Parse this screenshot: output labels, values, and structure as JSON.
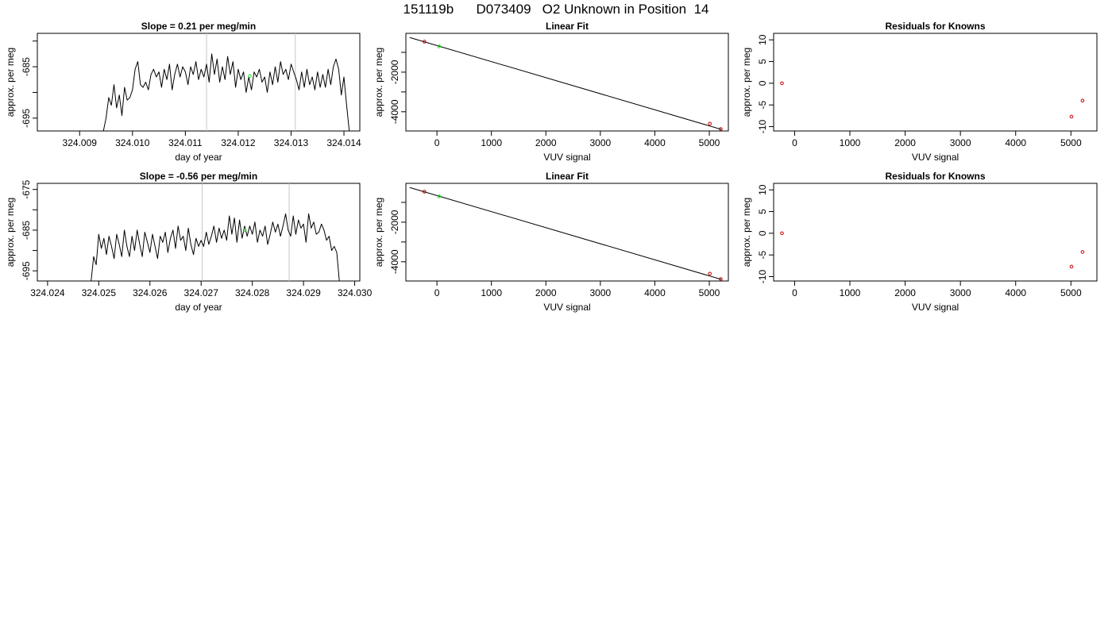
{
  "figure_title": "151119b      D073409   O2 Unknown in Position  14",
  "chart_data": [
    {
      "type": "line",
      "title": "Slope =  0.21  per meg/min",
      "xlabel": "day of year",
      "ylabel": "approx. per meg",
      "xlim": [
        324.0082,
        324.0143
      ],
      "ylim": [
        -697.5,
        -678.5
      ],
      "xticks": [
        324.009,
        324.01,
        324.011,
        324.012,
        324.013,
        324.014
      ],
      "xtick_labels": [
        "324.009",
        "324.010",
        "324.011",
        "324.012",
        "324.013",
        "324.014"
      ],
      "yticks": [
        -685,
        -695
      ],
      "ytick_labels": [
        "-685",
        "-695"
      ],
      "yticks_minor": [
        -680,
        -690
      ],
      "vlines": [
        324.0114,
        324.01308
      ],
      "series": [
        {
          "color": "#000000",
          "x": [
            324.00945,
            324.0095,
            324.00955,
            324.0096,
            324.00965,
            324.0097,
            324.00975,
            324.0098,
            324.00985,
            324.0099,
            324.00995,
            324.01,
            324.01005,
            324.0101,
            324.01015,
            324.0102,
            324.01025,
            324.0103,
            324.01035,
            324.0104,
            324.01045,
            324.0105,
            324.01055,
            324.0106,
            324.01065,
            324.0107,
            324.01075,
            324.0108,
            324.01085,
            324.0109,
            324.01095,
            324.011,
            324.01105,
            324.0111,
            324.01115,
            324.0112,
            324.01125,
            324.0113,
            324.01135,
            324.0114,
            324.01145,
            324.0115,
            324.01155,
            324.0116,
            324.01165,
            324.0117,
            324.01175,
            324.0118,
            324.01185,
            324.0119,
            324.01195,
            324.012,
            324.01205,
            324.0121,
            324.01215,
            324.0122,
            324.01225,
            324.0123,
            324.01235,
            324.0124,
            324.01245,
            324.0125,
            324.01255,
            324.0126,
            324.01265,
            324.0127,
            324.01275,
            324.0128,
            324.01285,
            324.0129,
            324.01295,
            324.013,
            324.01305,
            324.0131,
            324.01315,
            324.0132,
            324.01325,
            324.0133,
            324.01335,
            324.0134,
            324.01345,
            324.0135,
            324.01355,
            324.0136,
            324.01365,
            324.0137,
            324.01375,
            324.0138,
            324.01385,
            324.0139,
            324.01395,
            324.014,
            324.01405,
            324.0141
          ],
          "y": [
            -697.5,
            -695.0,
            -691.0,
            -692.5,
            -688.5,
            -693.0,
            -690.5,
            -694.5,
            -689.0,
            -691.5,
            -691.0,
            -689.5,
            -685.5,
            -684.0,
            -688.5,
            -689.0,
            -688.0,
            -689.5,
            -686.5,
            -685.5,
            -687.0,
            -686.0,
            -689.0,
            -685.5,
            -687.5,
            -684.5,
            -689.5,
            -686.5,
            -684.5,
            -687.0,
            -685.0,
            -686.0,
            -688.5,
            -685.0,
            -686.5,
            -684.0,
            -687.5,
            -685.5,
            -687.0,
            -684.5,
            -688.0,
            -682.5,
            -686.5,
            -683.5,
            -688.0,
            -685.0,
            -687.5,
            -683.0,
            -686.5,
            -684.0,
            -689.0,
            -685.5,
            -687.5,
            -686.0,
            -690.0,
            -687.0,
            -689.5,
            -686.0,
            -687.0,
            -685.5,
            -688.0,
            -687.0,
            -690.0,
            -686.0,
            -688.5,
            -685.0,
            -688.0,
            -684.0,
            -686.5,
            -685.5,
            -687.5,
            -684.5,
            -686.0,
            -687.5,
            -689.5,
            -686.0,
            -689.0,
            -685.5,
            -688.5,
            -687.0,
            -689.5,
            -686.0,
            -689.0,
            -686.5,
            -689.0,
            -685.5,
            -688.5,
            -685.0,
            -683.5,
            -685.5,
            -690.5,
            -687.0,
            -692.5,
            -697.5
          ]
        }
      ],
      "points": [
        {
          "x": 324.01222,
          "y": -686.8,
          "color": "#22dd22"
        }
      ]
    },
    {
      "type": "scatter",
      "title": "Linear Fit",
      "xlabel": "VUV signal",
      "ylabel": "approx. per meg",
      "xlim": [
        -570,
        5350
      ],
      "ylim": [
        -4970,
        -40
      ],
      "xticks": [
        0,
        1000,
        2000,
        3000,
        4000,
        5000
      ],
      "xtick_labels": [
        "0",
        "1000",
        "2000",
        "3000",
        "4000",
        "5000"
      ],
      "yticks": [
        -2000,
        -4000
      ],
      "ytick_labels": [
        "-2000",
        "-4000"
      ],
      "yticks_minor": [
        -1000,
        -3000
      ],
      "fit_line": {
        "x": [
          -500,
          5220
        ],
        "y": [
          -250,
          -4890
        ]
      },
      "points": [
        {
          "x": -230,
          "y": -460,
          "color": "#cc0000"
        },
        {
          "x": 40,
          "y": -700,
          "color": "#22dd22"
        },
        {
          "x": 5010,
          "y": -4600,
          "color": "#cc0000"
        },
        {
          "x": 5210,
          "y": -4870,
          "color": "#cc0000"
        }
      ]
    },
    {
      "type": "scatter",
      "title": "Residuals for Knowns",
      "xlabel": "VUV signal",
      "ylabel": "approx. per meg",
      "xlim": [
        -380,
        5470
      ],
      "ylim": [
        -11,
        11.5
      ],
      "xticks": [
        0,
        1000,
        2000,
        3000,
        4000,
        5000
      ],
      "xtick_labels": [
        "0",
        "1000",
        "2000",
        "3000",
        "4000",
        "5000"
      ],
      "yticks": [
        10,
        5,
        0,
        -5,
        -10
      ],
      "ytick_labels": [
        "10",
        "5",
        "0",
        "-5",
        "-10"
      ],
      "points": [
        {
          "x": -230,
          "y": 0,
          "color": "#cc0000"
        },
        {
          "x": 5010,
          "y": -7.7,
          "color": "#cc0000"
        },
        {
          "x": 5210,
          "y": -4.0,
          "color": "#cc0000"
        }
      ]
    },
    {
      "type": "line",
      "title": "Slope =  -0.56  per meg/min",
      "xlabel": "day of year",
      "ylabel": "approx. per meg",
      "xlim": [
        324.0238,
        324.0301
      ],
      "ylim": [
        -697.5,
        -673.5
      ],
      "xticks": [
        324.024,
        324.025,
        324.026,
        324.027,
        324.028,
        324.029,
        324.03
      ],
      "xtick_labels": [
        "324.024",
        "324.025",
        "324.026",
        "324.027",
        "324.028",
        "324.029",
        "324.030"
      ],
      "yticks": [
        -675,
        -685,
        -695
      ],
      "ytick_labels": [
        "-675",
        "-685",
        "-695"
      ],
      "yticks_minor": [
        -680,
        -690
      ],
      "vlines": [
        324.02702,
        324.02872
      ],
      "series": [
        {
          "color": "#000000",
          "x": [
            324.02485,
            324.0249,
            324.02495,
            324.025,
            324.02505,
            324.0251,
            324.02515,
            324.0252,
            324.02525,
            324.0253,
            324.02535,
            324.0254,
            324.02545,
            324.0255,
            324.02555,
            324.0256,
            324.02565,
            324.0257,
            324.02575,
            324.0258,
            324.02585,
            324.0259,
            324.02595,
            324.026,
            324.02605,
            324.0261,
            324.02615,
            324.0262,
            324.02625,
            324.0263,
            324.02635,
            324.0264,
            324.02645,
            324.0265,
            324.02655,
            324.0266,
            324.02665,
            324.0267,
            324.02675,
            324.0268,
            324.02685,
            324.0269,
            324.02695,
            324.027,
            324.02705,
            324.0271,
            324.02715,
            324.0272,
            324.02725,
            324.0273,
            324.02735,
            324.0274,
            324.02745,
            324.0275,
            324.02755,
            324.0276,
            324.02765,
            324.0277,
            324.02775,
            324.0278,
            324.02785,
            324.0279,
            324.02795,
            324.028,
            324.02805,
            324.0281,
            324.02815,
            324.0282,
            324.02825,
            324.0283,
            324.02835,
            324.0284,
            324.02845,
            324.0285,
            324.02855,
            324.0286,
            324.02865,
            324.0287,
            324.02875,
            324.0288,
            324.02885,
            324.0289,
            324.02895,
            324.029,
            324.02905,
            324.0291,
            324.02915,
            324.0292,
            324.02925,
            324.0293,
            324.02935,
            324.0294,
            324.02945,
            324.0295,
            324.02955,
            324.0296,
            324.02965,
            324.0297
          ],
          "y": [
            -697.5,
            -691.5,
            -693.5,
            -686.0,
            -689.5,
            -687.0,
            -691.0,
            -686.5,
            -689.0,
            -692.0,
            -686.0,
            -688.5,
            -691.5,
            -685.0,
            -689.0,
            -691.5,
            -686.5,
            -690.0,
            -685.0,
            -688.5,
            -691.5,
            -685.5,
            -688.0,
            -690.5,
            -686.0,
            -689.0,
            -692.0,
            -686.5,
            -688.0,
            -685.5,
            -690.5,
            -687.0,
            -685.0,
            -689.5,
            -684.0,
            -687.5,
            -686.5,
            -690.0,
            -684.5,
            -688.5,
            -691.0,
            -687.0,
            -689.0,
            -687.5,
            -689.0,
            -685.5,
            -688.5,
            -686.5,
            -684.0,
            -688.0,
            -684.5,
            -687.0,
            -685.0,
            -687.5,
            -681.5,
            -686.0,
            -682.0,
            -688.0,
            -682.5,
            -687.0,
            -684.0,
            -686.5,
            -684.0,
            -686.0,
            -683.0,
            -688.0,
            -685.0,
            -686.5,
            -684.0,
            -688.5,
            -686.0,
            -683.0,
            -685.5,
            -683.5,
            -686.5,
            -684.0,
            -681.0,
            -685.0,
            -686.5,
            -681.5,
            -686.0,
            -682.5,
            -684.5,
            -683.5,
            -688.0,
            -681.0,
            -684.5,
            -683.0,
            -686.0,
            -685.5,
            -683.5,
            -685.0,
            -687.5,
            -686.5,
            -690.0,
            -689.0,
            -690.5,
            -697.5
          ]
        }
      ],
      "points": [
        {
          "x": 324.02785,
          "y": -685.0,
          "color": "#22dd22"
        }
      ]
    },
    {
      "type": "scatter",
      "title": "Linear Fit",
      "xlabel": "VUV signal",
      "ylabel": "approx. per meg",
      "xlim": [
        -570,
        5350
      ],
      "ylim": [
        -4970,
        -40
      ],
      "xticks": [
        0,
        1000,
        2000,
        3000,
        4000,
        5000
      ],
      "xtick_labels": [
        "0",
        "1000",
        "2000",
        "3000",
        "4000",
        "5000"
      ],
      "yticks": [
        -2000,
        -4000
      ],
      "ytick_labels": [
        "-2000",
        "-4000"
      ],
      "yticks_minor": [
        -1000,
        -3000
      ],
      "fit_line": {
        "x": [
          -500,
          5220
        ],
        "y": [
          -250,
          -4890
        ]
      },
      "points": [
        {
          "x": -230,
          "y": -460,
          "color": "#cc0000"
        },
        {
          "x": 40,
          "y": -700,
          "color": "#22dd22"
        },
        {
          "x": 5010,
          "y": -4600,
          "color": "#cc0000"
        },
        {
          "x": 5210,
          "y": -4870,
          "color": "#cc0000"
        }
      ]
    },
    {
      "type": "scatter",
      "title": "Residuals for Knowns",
      "xlabel": "VUV signal",
      "ylabel": "approx. per meg",
      "xlim": [
        -380,
        5470
      ],
      "ylim": [
        -11,
        11.5
      ],
      "xticks": [
        0,
        1000,
        2000,
        3000,
        4000,
        5000
      ],
      "xtick_labels": [
        "0",
        "1000",
        "2000",
        "3000",
        "4000",
        "5000"
      ],
      "yticks": [
        10,
        5,
        0,
        -5,
        -10
      ],
      "ytick_labels": [
        "10",
        "5",
        "0",
        "-5",
        "-10"
      ],
      "points": [
        {
          "x": -230,
          "y": 0,
          "color": "#cc0000"
        },
        {
          "x": 5010,
          "y": -7.7,
          "color": "#cc0000"
        },
        {
          "x": 5210,
          "y": -4.3,
          "color": "#cc0000"
        }
      ]
    }
  ]
}
